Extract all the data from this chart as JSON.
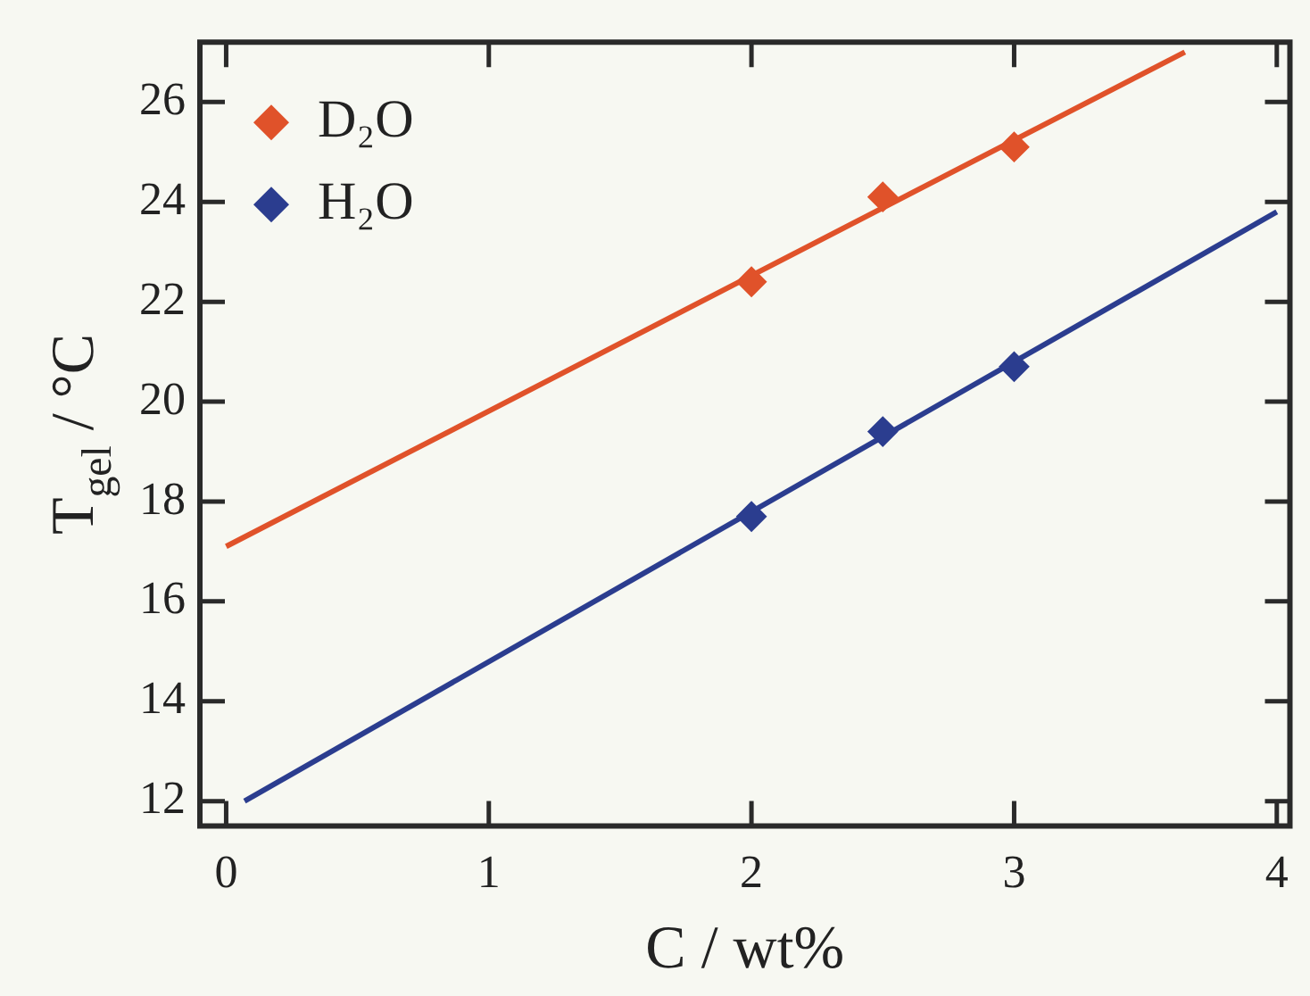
{
  "chart_data": {
    "type": "scatter",
    "xlabel": "C / wt%",
    "ylabel": "T$_{gel}$ / °C",
    "xlim": [
      -0.1,
      4.05
    ],
    "ylim": [
      11.5,
      27.2
    ],
    "xticks": [
      0,
      1,
      2,
      3,
      4
    ],
    "yticks": [
      12,
      14,
      16,
      18,
      20,
      22,
      24,
      26
    ],
    "grid": false,
    "legend": "top left",
    "marker": "diamond",
    "series": [
      {
        "name": "D₂O",
        "color": "#e0522a",
        "x": [
          2,
          2.5,
          3
        ],
        "values": [
          22.4,
          24.1,
          25.1
        ]
      },
      {
        "name": "H₂O",
        "color": "#2b3d8f",
        "x": [
          2,
          2.5,
          3
        ],
        "values": [
          17.7,
          19.4,
          20.7
        ]
      },
      {
        "type": "line",
        "marker": "none",
        "color": "#e0522a",
        "x": [
          0,
          3.65
        ],
        "values": [
          17.1,
          27.0
        ]
      },
      {
        "type": "line",
        "marker": "none",
        "color": "#2b3d8f",
        "x": [
          0.07,
          4.0
        ],
        "values": [
          12.0,
          23.8
        ]
      }
    ]
  }
}
